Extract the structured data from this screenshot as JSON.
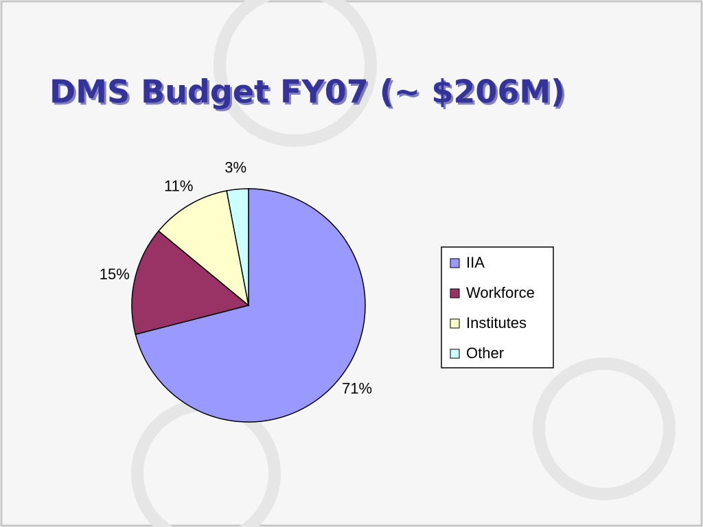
{
  "chart_data": {
    "type": "pie",
    "title": "DMS Budget FY07 (~ $206M)",
    "categories": [
      "IIA",
      "Workforce",
      "Institutes",
      "Other"
    ],
    "values": [
      71,
      15,
      11,
      3
    ],
    "value_labels": [
      "71%",
      "15%",
      "11%",
      "3%"
    ],
    "colors": [
      "#9999ff",
      "#993366",
      "#ffffcc",
      "#ccffff"
    ],
    "legend": "right"
  }
}
